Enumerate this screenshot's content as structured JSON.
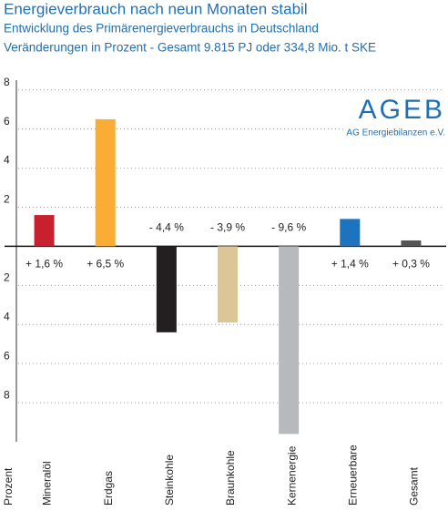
{
  "chart_data": {
    "type": "bar",
    "title": "Energieverbrauch nach neun Monaten stabil",
    "subtitle": "Entwicklung des Primärenergieverbrauchs in Deutschland",
    "subtitle2": "Veränderungen in Prozent - Gesamt 9.815 PJ oder 334,8 Mio. t SKE",
    "ylabel": "Prozent",
    "categories": [
      "Mineralöl",
      "Erdgas",
      "Steinkohle",
      "Braunkohle",
      "Kernenergie",
      "Erneuerbare",
      "Gesamt"
    ],
    "values": [
      1.6,
      6.5,
      -4.4,
      -3.9,
      -9.6,
      1.4,
      0.3
    ],
    "value_labels": [
      "+ 1,6 %",
      "+ 6,5 %",
      "- 4,4 %",
      "- 3,9 %",
      "- 9,6 %",
      "+ 1,4 %",
      "+ 0,3 %"
    ],
    "colors": [
      "#c8202f",
      "#f9ad35",
      "#231f20",
      "#dcc596",
      "#b8b9bd",
      "#1e73be",
      "#555555"
    ],
    "ylim": [
      -10,
      8.5
    ],
    "yticks": [
      8,
      6,
      4,
      2,
      {
        "value": -2,
        "label": "2"
      },
      {
        "value": -4,
        "label": "4"
      },
      {
        "value": -6,
        "label": "6"
      },
      {
        "value": -8,
        "label": "8"
      }
    ],
    "grid": true
  },
  "logo": {
    "title": "AGEB",
    "subtitle": "AG Energiebilanzen e.V."
  }
}
